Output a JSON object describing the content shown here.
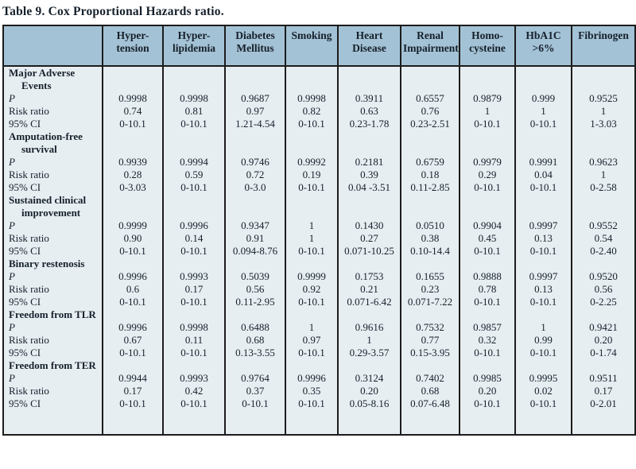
{
  "title": "Table 9. Cox Proportional Hazards ratio.",
  "columns": [
    "Hyper-\ntension",
    "Hyper-\nlipidemia",
    "Diabetes\nMellitus",
    "Smoking",
    "Heart\nDisease",
    "Renal\nImpairment",
    "Homo-\ncysteine",
    "HbA1C\n>6%",
    "Fibrinogen"
  ],
  "row_labels": {
    "p": "P",
    "risk_ratio": "Risk ratio",
    "ci": "95% CI"
  },
  "groups": [
    {
      "name": "Major Adverse Events",
      "p": [
        "0.9998",
        "0.9998",
        "0.9687",
        "0.9998",
        "0.3911",
        "0.6557",
        "0.9879",
        "0.999",
        "0.9525"
      ],
      "risk_ratio": [
        "0.74",
        "0.81",
        "0.97",
        "0.82",
        "0.63",
        "0.76",
        "1",
        "1",
        "1"
      ],
      "ci": [
        "0-10.1",
        "0-10.1",
        "1.21-4.54",
        "0-10.1",
        "0.23-1.78",
        "0.23-2.51",
        "0-10.1",
        "0-10.1",
        "1-3.03"
      ]
    },
    {
      "name": "Amputation-free survival",
      "p": [
        "0.9939",
        "0.9994",
        "0.9746",
        "0.9992",
        "0.2181",
        "0.6759",
        "0.9979",
        "0.9991",
        "0.9623"
      ],
      "risk_ratio": [
        "0.28",
        "0.59",
        "0.72",
        "0.19",
        "0.39",
        "0.18",
        "0.29",
        "0.04",
        "1"
      ],
      "ci": [
        "0-3.03",
        "0-10.1",
        "0-3.0",
        "0-10.1",
        "0.04 -3.51",
        "0.11-2.85",
        "0-10.1",
        "0-10.1",
        "0-2.58"
      ]
    },
    {
      "name": "Sustained clinical improvement",
      "p": [
        "0.9999",
        "0.9996",
        "0.9347",
        "1",
        "0.1430",
        "0.0510",
        "0.9904",
        "0.9997",
        "0.9552"
      ],
      "risk_ratio": [
        "0.90",
        "0.14",
        "0.91",
        "1",
        "0.27",
        "0.38",
        "0.45",
        "0.13",
        "0.54"
      ],
      "ci": [
        "0-10.1",
        "0-10.1",
        "0.094-8.76",
        "0-10.1",
        "0.071-10.25",
        "0.10-14.4",
        "0-10.1",
        "0-10.1",
        "0-2.40"
      ]
    },
    {
      "name": "Binary restenosis",
      "p": [
        "0.9996",
        "0.9993",
        "0.5039",
        "0.9999",
        "0.1753",
        "0.1655",
        "0.9888",
        "0.9997",
        "0.9520"
      ],
      "risk_ratio": [
        "0.6",
        "0.17",
        "0.56",
        "0.92",
        "0.21",
        "0.23",
        "0.78",
        "0.13",
        "0.56"
      ],
      "ci": [
        "0-10.1",
        "0-10.1",
        "0.11-2.95",
        "0-10.1",
        "0.071-6.42",
        "0.071-7.22",
        "0-10.1",
        "0-10.1",
        "0-2.25"
      ]
    },
    {
      "name": "Freedom from TLR",
      "p": [
        "0.9996",
        "0.9998",
        "0.6488",
        "1",
        "0.9616",
        "0.7532",
        "0.9857",
        "1",
        "0.9421"
      ],
      "risk_ratio": [
        "0.67",
        "0.11",
        "0.68",
        "0.97",
        "1",
        "0.77",
        "0.32",
        "0.99",
        "0.20"
      ],
      "ci": [
        "0-10.1",
        "0-10.1",
        "0.13-3.55",
        "0-10.1",
        "0.29-3.57",
        "0.15-3.95",
        "0-10.1",
        "0-10.1",
        "0-1.74"
      ]
    },
    {
      "name": "Freedom from TER",
      "p": [
        "0.9944",
        "0.9993",
        "0.9764",
        "0.9996",
        "0.3124",
        "0.7402",
        "0.9985",
        "0.9995",
        "0.9511"
      ],
      "risk_ratio": [
        "0.17",
        "0.42",
        "0.37",
        "0.35",
        "0.20",
        "0.68",
        "0.20",
        "0.02",
        "0.17"
      ],
      "ci": [
        "0-10.1",
        "0-10.1",
        "0-10.1",
        "0-10.1",
        "0.05-8.16",
        "0.07-6.48",
        "0-10.1",
        "0-10.1",
        "0-2.01"
      ]
    }
  ]
}
